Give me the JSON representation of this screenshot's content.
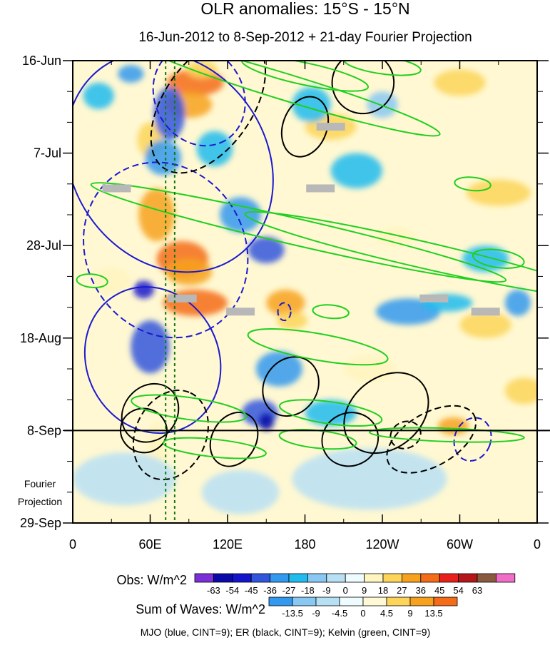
{
  "chart_data": {
    "type": "heatmap",
    "title": "OLR anomalies: 15°S - 15°N",
    "subtitle": "16-Jun-2012 to 8-Sep-2012 + 21-day Fourier Projection",
    "x_ticks": [
      {
        "label": "0",
        "lon": 0
      },
      {
        "label": "60E",
        "lon": 60
      },
      {
        "label": "120E",
        "lon": 120
      },
      {
        "label": "180",
        "lon": 180
      },
      {
        "label": "120W",
        "lon": 240
      },
      {
        "label": "60W",
        "lon": 300
      },
      {
        "label": "0",
        "lon": 360
      }
    ],
    "xlim": [
      0,
      360
    ],
    "y_ticks": [
      {
        "label": "16-Jun",
        "day": 0
      },
      {
        "label": "7-Jul",
        "day": 21
      },
      {
        "label": "28-Jul",
        "day": 42
      },
      {
        "label": "18-Aug",
        "day": 63
      },
      {
        "label": "8-Sep",
        "day": 84
      },
      {
        "label": "29-Sep",
        "day": 105
      }
    ],
    "ylim_days": [
      0,
      105
    ],
    "projection_start_day": 84,
    "projection_label": [
      "Fourier",
      "Projection"
    ],
    "reference_lines_lon": [
      72,
      79
    ],
    "obs_colorbar": {
      "label": "Obs: W/m^2",
      "ticks": [
        "-63",
        "-54",
        "-45",
        "-36",
        "-27",
        "-18",
        "-9",
        "0",
        "9",
        "18",
        "27",
        "36",
        "45",
        "54",
        "63"
      ],
      "colors": [
        "#7b2fd6",
        "#0a0aa8",
        "#1414cc",
        "#3355dd",
        "#3399ee",
        "#22bbee",
        "#88c8f2",
        "#b8e0f5",
        "#eefbff",
        "#fff5c0",
        "#fcd55a",
        "#f7a21e",
        "#f46c17",
        "#e8201b",
        "#b5161a",
        "#8a5a40",
        "#f06ec8"
      ]
    },
    "wave_colorbar": {
      "label": "Sum of Waves: W/m^2",
      "ticks": [
        "-13.5",
        "-9",
        "-4.5",
        "0",
        "4.5",
        "9",
        "13.5"
      ],
      "colors": [
        "#3399ee",
        "#88c8f2",
        "#b8e0f5",
        "#eefbff",
        "#fff9d6",
        "#fcd55a",
        "#f7a21e",
        "#f46c17"
      ]
    },
    "footer": "MJO (blue, CINT=9); ER (black, CINT=9); Kelvin (green, CINT=9)",
    "series": [
      {
        "name": "MJO",
        "color": "#1a1ad0"
      },
      {
        "name": "ER",
        "color": "#000000"
      },
      {
        "name": "Kelvin",
        "color": "#20d020"
      }
    ],
    "blobs": [
      {
        "lon": 95,
        "day": 5,
        "w": 22,
        "h": 3,
        "v": 36
      },
      {
        "lon": 90,
        "day": 10,
        "w": 18,
        "h": 3,
        "v": 27
      },
      {
        "lon": 100,
        "day": 2,
        "w": 12,
        "h": 2,
        "v": 18
      },
      {
        "lon": 60,
        "day": 18,
        "w": 10,
        "h": 4,
        "v": 18
      },
      {
        "lon": 65,
        "day": 35,
        "w": 14,
        "h": 6,
        "v": 27
      },
      {
        "lon": 85,
        "day": 45,
        "w": 20,
        "h": 4,
        "v": 36
      },
      {
        "lon": 95,
        "day": 55,
        "w": 25,
        "h": 3,
        "v": 36
      },
      {
        "lon": 90,
        "day": 48,
        "w": 18,
        "h": 3,
        "v": 27
      },
      {
        "lon": 165,
        "day": 55,
        "w": 15,
        "h": 3,
        "v": 27
      },
      {
        "lon": 170,
        "day": 59,
        "w": 12,
        "h": 2,
        "v": 18
      },
      {
        "lon": 65,
        "day": 90,
        "w": 8,
        "h": 8,
        "v": 9
      },
      {
        "lon": 200,
        "day": 15,
        "w": 20,
        "h": 3,
        "v": 18
      },
      {
        "lon": 330,
        "day": 30,
        "w": 25,
        "h": 3,
        "v": 18
      },
      {
        "lon": 300,
        "day": 5,
        "w": 20,
        "h": 3,
        "v": 18
      },
      {
        "lon": 250,
        "day": 40,
        "w": 15,
        "h": 2,
        "v": 9
      },
      {
        "lon": 320,
        "day": 60,
        "w": 20,
        "h": 3,
        "v": 18
      },
      {
        "lon": 295,
        "day": 83,
        "w": 12,
        "h": 2,
        "v": 27
      },
      {
        "lon": 30,
        "day": 50,
        "w": 15,
        "h": 3,
        "v": 9
      },
      {
        "lon": 230,
        "day": 70,
        "w": 20,
        "h": 3,
        "v": 9
      },
      {
        "lon": 350,
        "day": 75,
        "w": 15,
        "h": 3,
        "v": 18
      },
      {
        "lon": 20,
        "day": 8,
        "w": 12,
        "h": 3,
        "v": -18
      },
      {
        "lon": 45,
        "day": 3,
        "w": 10,
        "h": 2,
        "v": -27
      },
      {
        "lon": 75,
        "day": 12,
        "w": 12,
        "h": 6,
        "v": -36
      },
      {
        "lon": 70,
        "day": 22,
        "w": 14,
        "h": 4,
        "v": -27
      },
      {
        "lon": 110,
        "day": 20,
        "w": 14,
        "h": 4,
        "v": -18
      },
      {
        "lon": 130,
        "day": 35,
        "w": 16,
        "h": 4,
        "v": -27
      },
      {
        "lon": 150,
        "day": 43,
        "w": 14,
        "h": 3,
        "v": -36
      },
      {
        "lon": 60,
        "day": 65,
        "w": 15,
        "h": 6,
        "v": -36
      },
      {
        "lon": 55,
        "day": 52,
        "w": 8,
        "h": 2,
        "v": -45
      },
      {
        "lon": 160,
        "day": 70,
        "w": 18,
        "h": 4,
        "v": -27
      },
      {
        "lon": 145,
        "day": 80,
        "w": 14,
        "h": 3,
        "v": -36
      },
      {
        "lon": 150,
        "day": 82,
        "w": 6,
        "h": 2,
        "v": -54
      },
      {
        "lon": 260,
        "day": 57,
        "w": 25,
        "h": 3,
        "v": -27
      },
      {
        "lon": 290,
        "day": 55,
        "w": 20,
        "h": 2,
        "v": -18
      },
      {
        "lon": 220,
        "day": 25,
        "w": 20,
        "h": 4,
        "v": -18
      },
      {
        "lon": 320,
        "day": 45,
        "w": 18,
        "h": 3,
        "v": -18
      },
      {
        "lon": 185,
        "day": 10,
        "w": 15,
        "h": 4,
        "v": -18
      },
      {
        "lon": 240,
        "day": 10,
        "w": 12,
        "h": 3,
        "v": -9
      },
      {
        "lon": 345,
        "day": 55,
        "w": 10,
        "h": 3,
        "v": -27
      },
      {
        "lon": 200,
        "day": 80,
        "w": 20,
        "h": 3,
        "v": -18
      },
      {
        "lon": 40,
        "day": 95,
        "w": 40,
        "h": 6,
        "v": -4.5
      },
      {
        "lon": 230,
        "day": 95,
        "w": 60,
        "h": 7,
        "v": -4.5
      },
      {
        "lon": 130,
        "day": 98,
        "w": 30,
        "h": 5,
        "v": -4.5
      }
    ],
    "gray_boxes": [
      {
        "lon": 200,
        "day": 15
      },
      {
        "lon": 34,
        "day": 29
      },
      {
        "lon": 192,
        "day": 29
      },
      {
        "lon": 85,
        "day": 54
      },
      {
        "lon": 130,
        "day": 57
      },
      {
        "lon": 280,
        "day": 54
      },
      {
        "lon": 320,
        "day": 57
      }
    ],
    "contours": [
      {
        "wave": "MJO",
        "color": "#1a1ad0",
        "dash": false,
        "cx_lon": 75,
        "cy_day": 23,
        "rx": 90,
        "ry": 22,
        "rot": 55
      },
      {
        "wave": "MJO",
        "color": "#1a1ad0",
        "dash": false,
        "cx_lon": 62,
        "cy_day": 68,
        "rx": 58,
        "ry": 15,
        "rot": 63
      },
      {
        "wave": "MJO",
        "color": "#1a1ad0",
        "dash": true,
        "cx_lon": 72,
        "cy_day": 43,
        "rx": 70,
        "ry": 18,
        "rot": 60
      },
      {
        "wave": "MJO",
        "color": "#1a1ad0",
        "dash": true,
        "cx_lon": 98,
        "cy_day": 8,
        "rx": 40,
        "ry": 10,
        "rot": 60
      },
      {
        "wave": "MJO",
        "color": "#1a1ad0",
        "dash": true,
        "cx_lon": 164,
        "cy_day": 57,
        "rx": 5,
        "ry": 2,
        "rot": 0
      },
      {
        "wave": "MJO",
        "color": "#1a1ad0",
        "dash": true,
        "cx_lon": 310,
        "cy_day": 86,
        "rx": 14,
        "ry": 5,
        "rot": 20
      },
      {
        "wave": "ER",
        "color": "#000000",
        "dash": false,
        "cx_lon": 225,
        "cy_day": 5,
        "rx": 24,
        "ry": 7,
        "rot": -50
      },
      {
        "wave": "ER",
        "color": "#000000",
        "dash": false,
        "cx_lon": 180,
        "cy_day": 15,
        "rx": 24,
        "ry": 5,
        "rot": -70
      },
      {
        "wave": "ER",
        "color": "#000000",
        "dash": false,
        "cx_lon": 169,
        "cy_day": 74,
        "rx": 24,
        "ry": 6,
        "rot": -55
      },
      {
        "wave": "ER",
        "color": "#000000",
        "dash": false,
        "cx_lon": 243,
        "cy_day": 80,
        "rx": 36,
        "ry": 8,
        "rot": -40
      },
      {
        "wave": "ER",
        "color": "#000000",
        "dash": false,
        "cx_lon": 215,
        "cy_day": 86,
        "rx": 22,
        "ry": 6,
        "rot": -25
      },
      {
        "wave": "ER",
        "color": "#000000",
        "dash": false,
        "cx_lon": 60,
        "cy_day": 80,
        "rx": 24,
        "ry": 6,
        "rot": -50
      },
      {
        "wave": "ER",
        "color": "#000000",
        "dash": false,
        "cx_lon": 125,
        "cy_day": 86,
        "rx": 22,
        "ry": 5,
        "rot": -60
      },
      {
        "wave": "ER",
        "color": "#000000",
        "dash": false,
        "cx_lon": 55,
        "cy_day": 84,
        "rx": 18,
        "ry": 5,
        "rot": 10
      },
      {
        "wave": "ER",
        "color": "#000000",
        "dash": true,
        "cx_lon": 105,
        "cy_day": 10,
        "rx": 60,
        "ry": 10,
        "rot": -55
      },
      {
        "wave": "ER",
        "color": "#000000",
        "dash": true,
        "cx_lon": 76,
        "cy_day": 85,
        "rx": 36,
        "ry": 8,
        "rot": -65
      },
      {
        "wave": "ER",
        "color": "#000000",
        "dash": true,
        "cx_lon": 278,
        "cy_day": 86,
        "rx": 38,
        "ry": 6,
        "rot": -30
      },
      {
        "wave": "ER",
        "color": "#000000",
        "dash": true,
        "cx_lon": 258,
        "cy_day": 85,
        "rx": 12,
        "ry": 3,
        "rot": -25
      },
      {
        "wave": "Kelvin",
        "color": "#20d020",
        "dash": false,
        "cx_lon": 165,
        "cy_day": 6,
        "rx": 125,
        "ry": 3,
        "rot": 17
      },
      {
        "wave": "Kelvin",
        "color": "#20d020",
        "dash": false,
        "cx_lon": 180,
        "cy_day": 3,
        "rx": 50,
        "ry": 2.5,
        "rot": 12
      },
      {
        "wave": "Kelvin",
        "color": "#20d020",
        "dash": false,
        "cx_lon": 240,
        "cy_day": 1,
        "rx": 30,
        "ry": 2,
        "rot": 8
      },
      {
        "wave": "Kelvin",
        "color": "#20d020",
        "dash": false,
        "cx_lon": 175,
        "cy_day": 39,
        "rx": 165,
        "ry": 3,
        "rot": 13
      },
      {
        "wave": "Kelvin",
        "color": "#20d020",
        "dash": false,
        "cx_lon": 270,
        "cy_day": 44,
        "rx": 140,
        "ry": 3,
        "rot": 13
      },
      {
        "wave": "Kelvin",
        "color": "#20d020",
        "dash": false,
        "cx_lon": 190,
        "cy_day": 65,
        "rx": 55,
        "ry": 3,
        "rot": 10
      },
      {
        "wave": "Kelvin",
        "color": "#20d020",
        "dash": false,
        "cx_lon": 90,
        "cy_day": 79,
        "rx": 45,
        "ry": 2.5,
        "rot": 8
      },
      {
        "wave": "Kelvin",
        "color": "#20d020",
        "dash": false,
        "cx_lon": 110,
        "cy_day": 88,
        "rx": 40,
        "ry": 2,
        "rot": 6
      },
      {
        "wave": "Kelvin",
        "color": "#20d020",
        "dash": false,
        "cx_lon": 200,
        "cy_day": 80,
        "rx": 40,
        "ry": 2.5,
        "rot": 8
      },
      {
        "wave": "Kelvin",
        "color": "#20d020",
        "dash": false,
        "cx_lon": 190,
        "cy_day": 86,
        "rx": 30,
        "ry": 2,
        "rot": 6
      },
      {
        "wave": "Kelvin",
        "color": "#20d020",
        "dash": false,
        "cx_lon": 290,
        "cy_day": 85,
        "rx": 60,
        "ry": 1.5,
        "rot": 2
      },
      {
        "wave": "Kelvin",
        "color": "#20d020",
        "dash": false,
        "cx_lon": 330,
        "cy_day": 45,
        "rx": 20,
        "ry": 2,
        "rot": 8
      },
      {
        "wave": "Kelvin",
        "color": "#20d020",
        "dash": false,
        "cx_lon": 200,
        "cy_day": 57,
        "rx": 14,
        "ry": 1.5,
        "rot": 5
      },
      {
        "wave": "Kelvin",
        "color": "#20d020",
        "dash": false,
        "cx_lon": 310,
        "cy_day": 28,
        "rx": 14,
        "ry": 1.5,
        "rot": 5
      },
      {
        "wave": "Kelvin",
        "color": "#20d020",
        "dash": false,
        "cx_lon": 15,
        "cy_day": 50,
        "rx": 12,
        "ry": 1.5,
        "rot": 5
      }
    ]
  }
}
